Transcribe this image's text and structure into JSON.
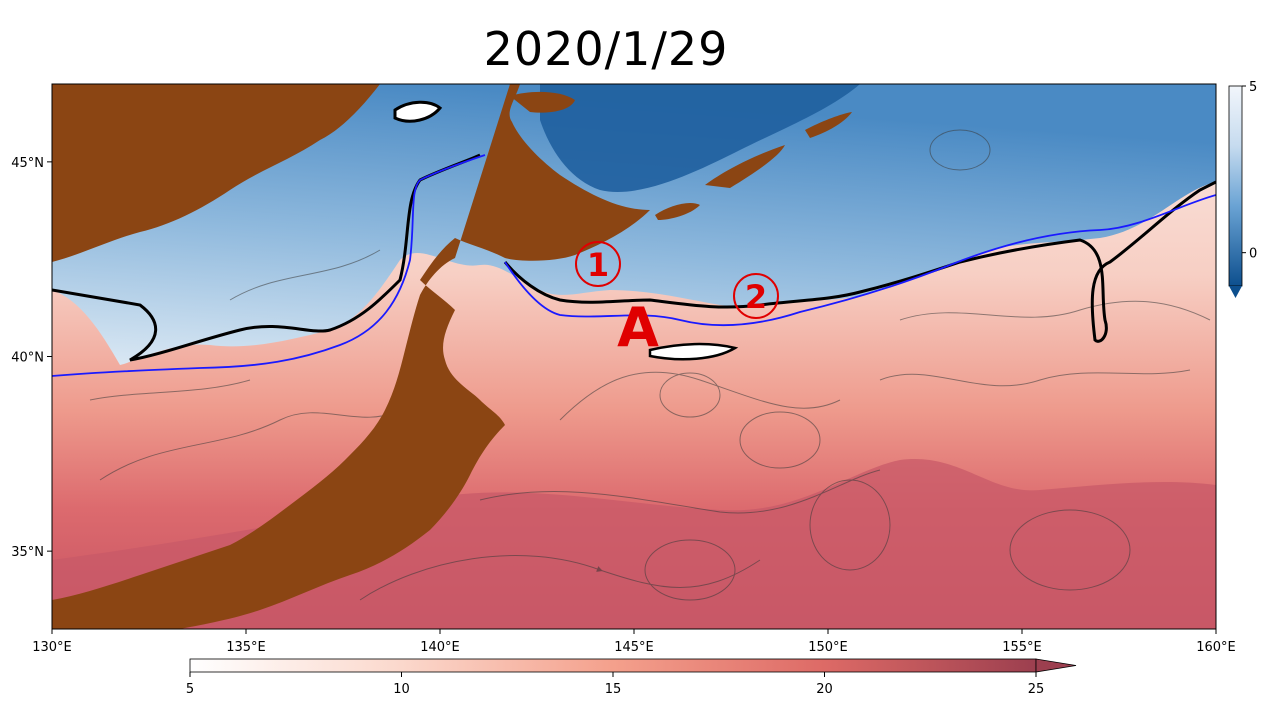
{
  "title": "2020/1/29",
  "map": {
    "lon_ticks": [
      {
        "label": "130°E",
        "lon": 130
      },
      {
        "label": "135°E",
        "lon": 135
      },
      {
        "label": "140°E",
        "lon": 140
      },
      {
        "label": "145°E",
        "lon": 145
      },
      {
        "label": "150°E",
        "lon": 150
      },
      {
        "label": "155°E",
        "lon": 155
      },
      {
        "label": "160°E",
        "lon": 160
      }
    ],
    "lat_ticks": [
      {
        "label": "35°N",
        "lat": 35
      },
      {
        "label": "40°N",
        "lat": 40
      },
      {
        "label": "45°N",
        "lat": 45
      }
    ],
    "extent": {
      "lon_min": 130,
      "lon_max": 160,
      "lat_min": 33,
      "lat_max": 47
    },
    "colors": {
      "land": "#8b4513",
      "warm_low": "#fbe8e2",
      "warm_high": "#b94a58",
      "cold_low": "#eaf1f8",
      "cold_high": "#0f4f8f",
      "front_line": "#000000",
      "isotherm_line": "#1a1aff",
      "annotation": "#e00000"
    }
  },
  "annotations": {
    "circle_1": "1",
    "circle_2": "2",
    "letter_A": "A"
  },
  "colorbar_bottom": {
    "tick_labels": [
      "5",
      "10",
      "15",
      "20",
      "25"
    ],
    "values": [
      5,
      10,
      15,
      20,
      25
    ],
    "range": [
      5,
      25
    ],
    "palette": "white-to-red"
  },
  "colorbar_right": {
    "tick_labels": [
      "5",
      "0"
    ],
    "values": [
      5,
      0
    ],
    "range": [
      -1,
      5
    ],
    "palette": "blue-to-white"
  }
}
